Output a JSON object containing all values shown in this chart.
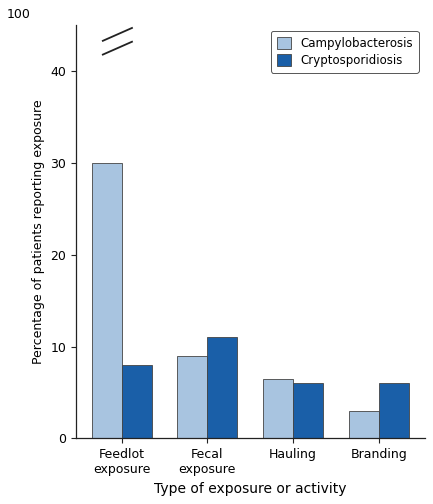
{
  "categories": [
    "Feedlot\nexposure",
    "Fecal\nexposure",
    "Hauling",
    "Branding"
  ],
  "campylobacterosis": [
    30,
    9,
    6.5,
    3
  ],
  "cryptosporidiosis": [
    8,
    11,
    6,
    6
  ],
  "campylo_color": "#a8c4e0",
  "crypto_color": "#1a5fa8",
  "xlabel": "Type of exposure or activity",
  "ylabel": "Percentage of patients reporting exposure",
  "ylim": [
    0,
    45
  ],
  "yticks": [
    0,
    10,
    20,
    30,
    40
  ],
  "ytick_labels": [
    "0",
    "10",
    "20",
    "30",
    "40"
  ],
  "y100_label": "100",
  "legend_labels": [
    "Campylobacterosis",
    "Cryptosporidiosis"
  ],
  "bar_width": 0.35,
  "figsize": [
    4.33,
    5.04
  ],
  "dpi": 100
}
